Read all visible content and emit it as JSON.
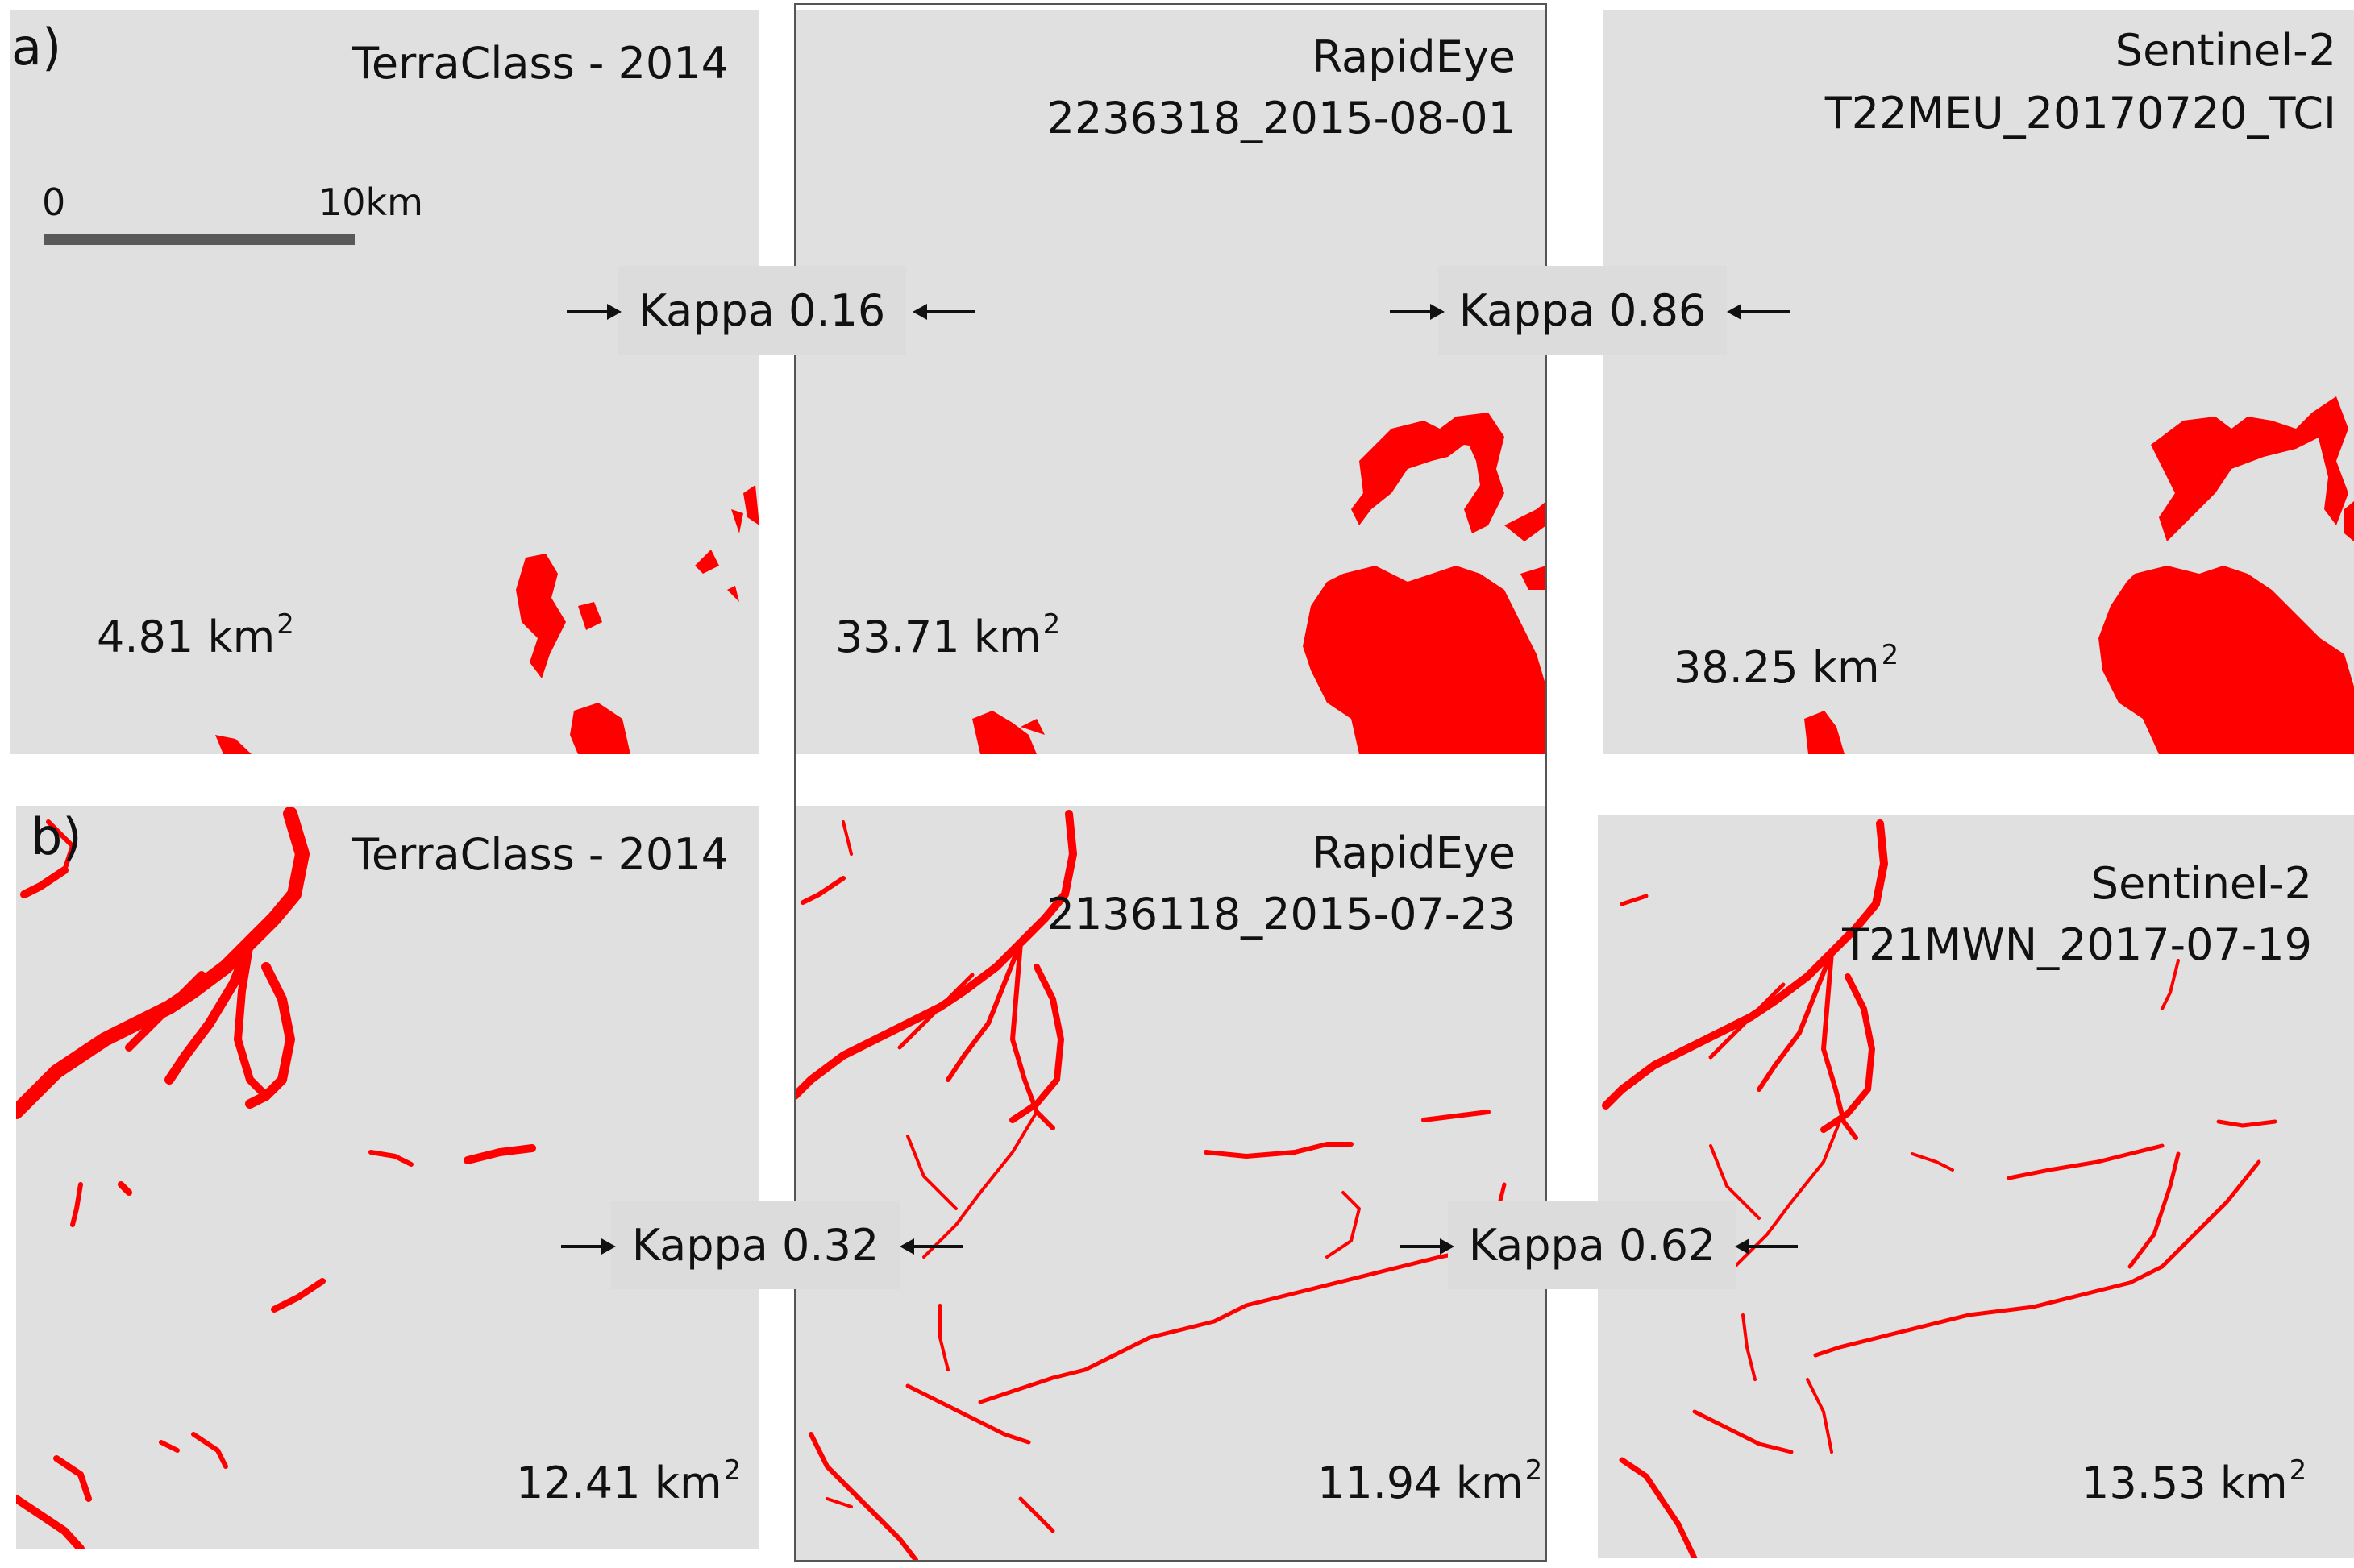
{
  "row_a": {
    "label": "a)",
    "panels": [
      {
        "title_lines": [
          "TerraClass - 2014"
        ],
        "area_value": "4.81 km",
        "area_sup": "2"
      },
      {
        "title_lines": [
          "RapidEye",
          "2236318_2015-08-01"
        ],
        "area_value": "33.71 km",
        "area_sup": "2"
      },
      {
        "title_lines": [
          "Sentinel-2",
          "T22MEU_20170720_TCI"
        ],
        "area_value": "38.25 km",
        "area_sup": "2"
      }
    ],
    "kappas": [
      "Kappa 0.16",
      "Kappa 0.86"
    ]
  },
  "row_b": {
    "label": "b)",
    "panels": [
      {
        "title_lines": [
          "TerraClass - 2014"
        ],
        "area_value": "12.41 km",
        "area_sup": "2"
      },
      {
        "title_lines": [
          "RapidEye",
          "2136118_2015-07-23"
        ],
        "area_value": "11.94 km",
        "area_sup": "2"
      },
      {
        "title_lines": [
          "Sentinel-2",
          "T21MWN_2017-07-19"
        ],
        "area_value": "13.53 km",
        "area_sup": "2"
      }
    ],
    "kappas": [
      "Kappa 0.32",
      "Kappa 0.62"
    ]
  },
  "scale_bar": {
    "start_label": "0",
    "end_label": "10km"
  },
  "colors": {
    "water": "#ff0000",
    "background": "#e0e0e0",
    "kappa_box": "#dcdcdc"
  }
}
